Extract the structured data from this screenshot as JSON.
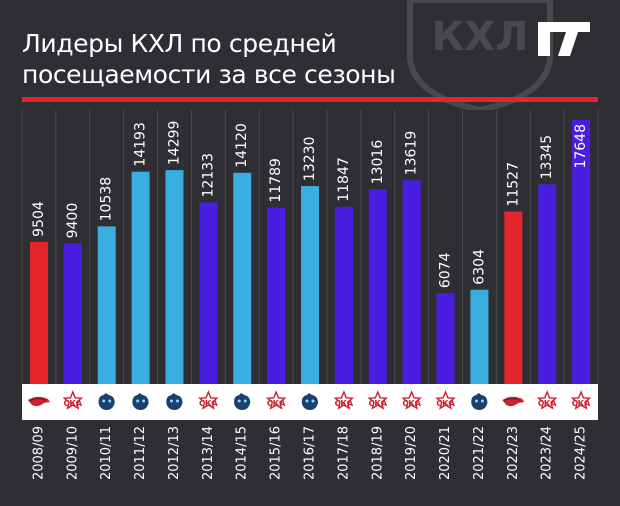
{
  "header": {
    "title_line1": "Лидеры КХЛ по средней",
    "title_line2": "посещаемости за все сезоны"
  },
  "colors": {
    "background": "#2f2f33",
    "accent_red": "#e3262b",
    "ska": "#4a1ee0",
    "dynamo": "#3aaee0",
    "avangard": "#e3262b",
    "icon_strip": "#ffffff"
  },
  "chart_data": {
    "type": "bar",
    "title": "Лидеры КХЛ по средней посещаемости за все сезоны",
    "categories": [
      "2008/09",
      "2009/10",
      "2010/11",
      "2011/12",
      "2012/13",
      "2013/14",
      "2014/15",
      "2015/16",
      "2016/17",
      "2017/18",
      "2018/19",
      "2019/20",
      "2020/21",
      "2021/22",
      "2022/23",
      "2023/24",
      "2024/25"
    ],
    "values": [
      9504,
      9400,
      10538,
      14193,
      14299,
      12133,
      14120,
      11789,
      13230,
      11847,
      13016,
      13619,
      6074,
      6304,
      11527,
      13345,
      17648
    ],
    "teams": [
      "avangard",
      "ska",
      "dynamo",
      "dynamo",
      "dynamo",
      "ska",
      "dynamo",
      "ska",
      "dynamo",
      "ska",
      "ska",
      "ska",
      "ska",
      "dynamo",
      "avangard",
      "ska",
      "ska"
    ],
    "team_icons": {
      "avangard": "hawk-icon",
      "ska": "ska-star-icon",
      "dynamo": "bear-icon"
    },
    "ylim": [
      0,
      17648
    ],
    "grid": true,
    "legend": "icons-below-bars"
  }
}
